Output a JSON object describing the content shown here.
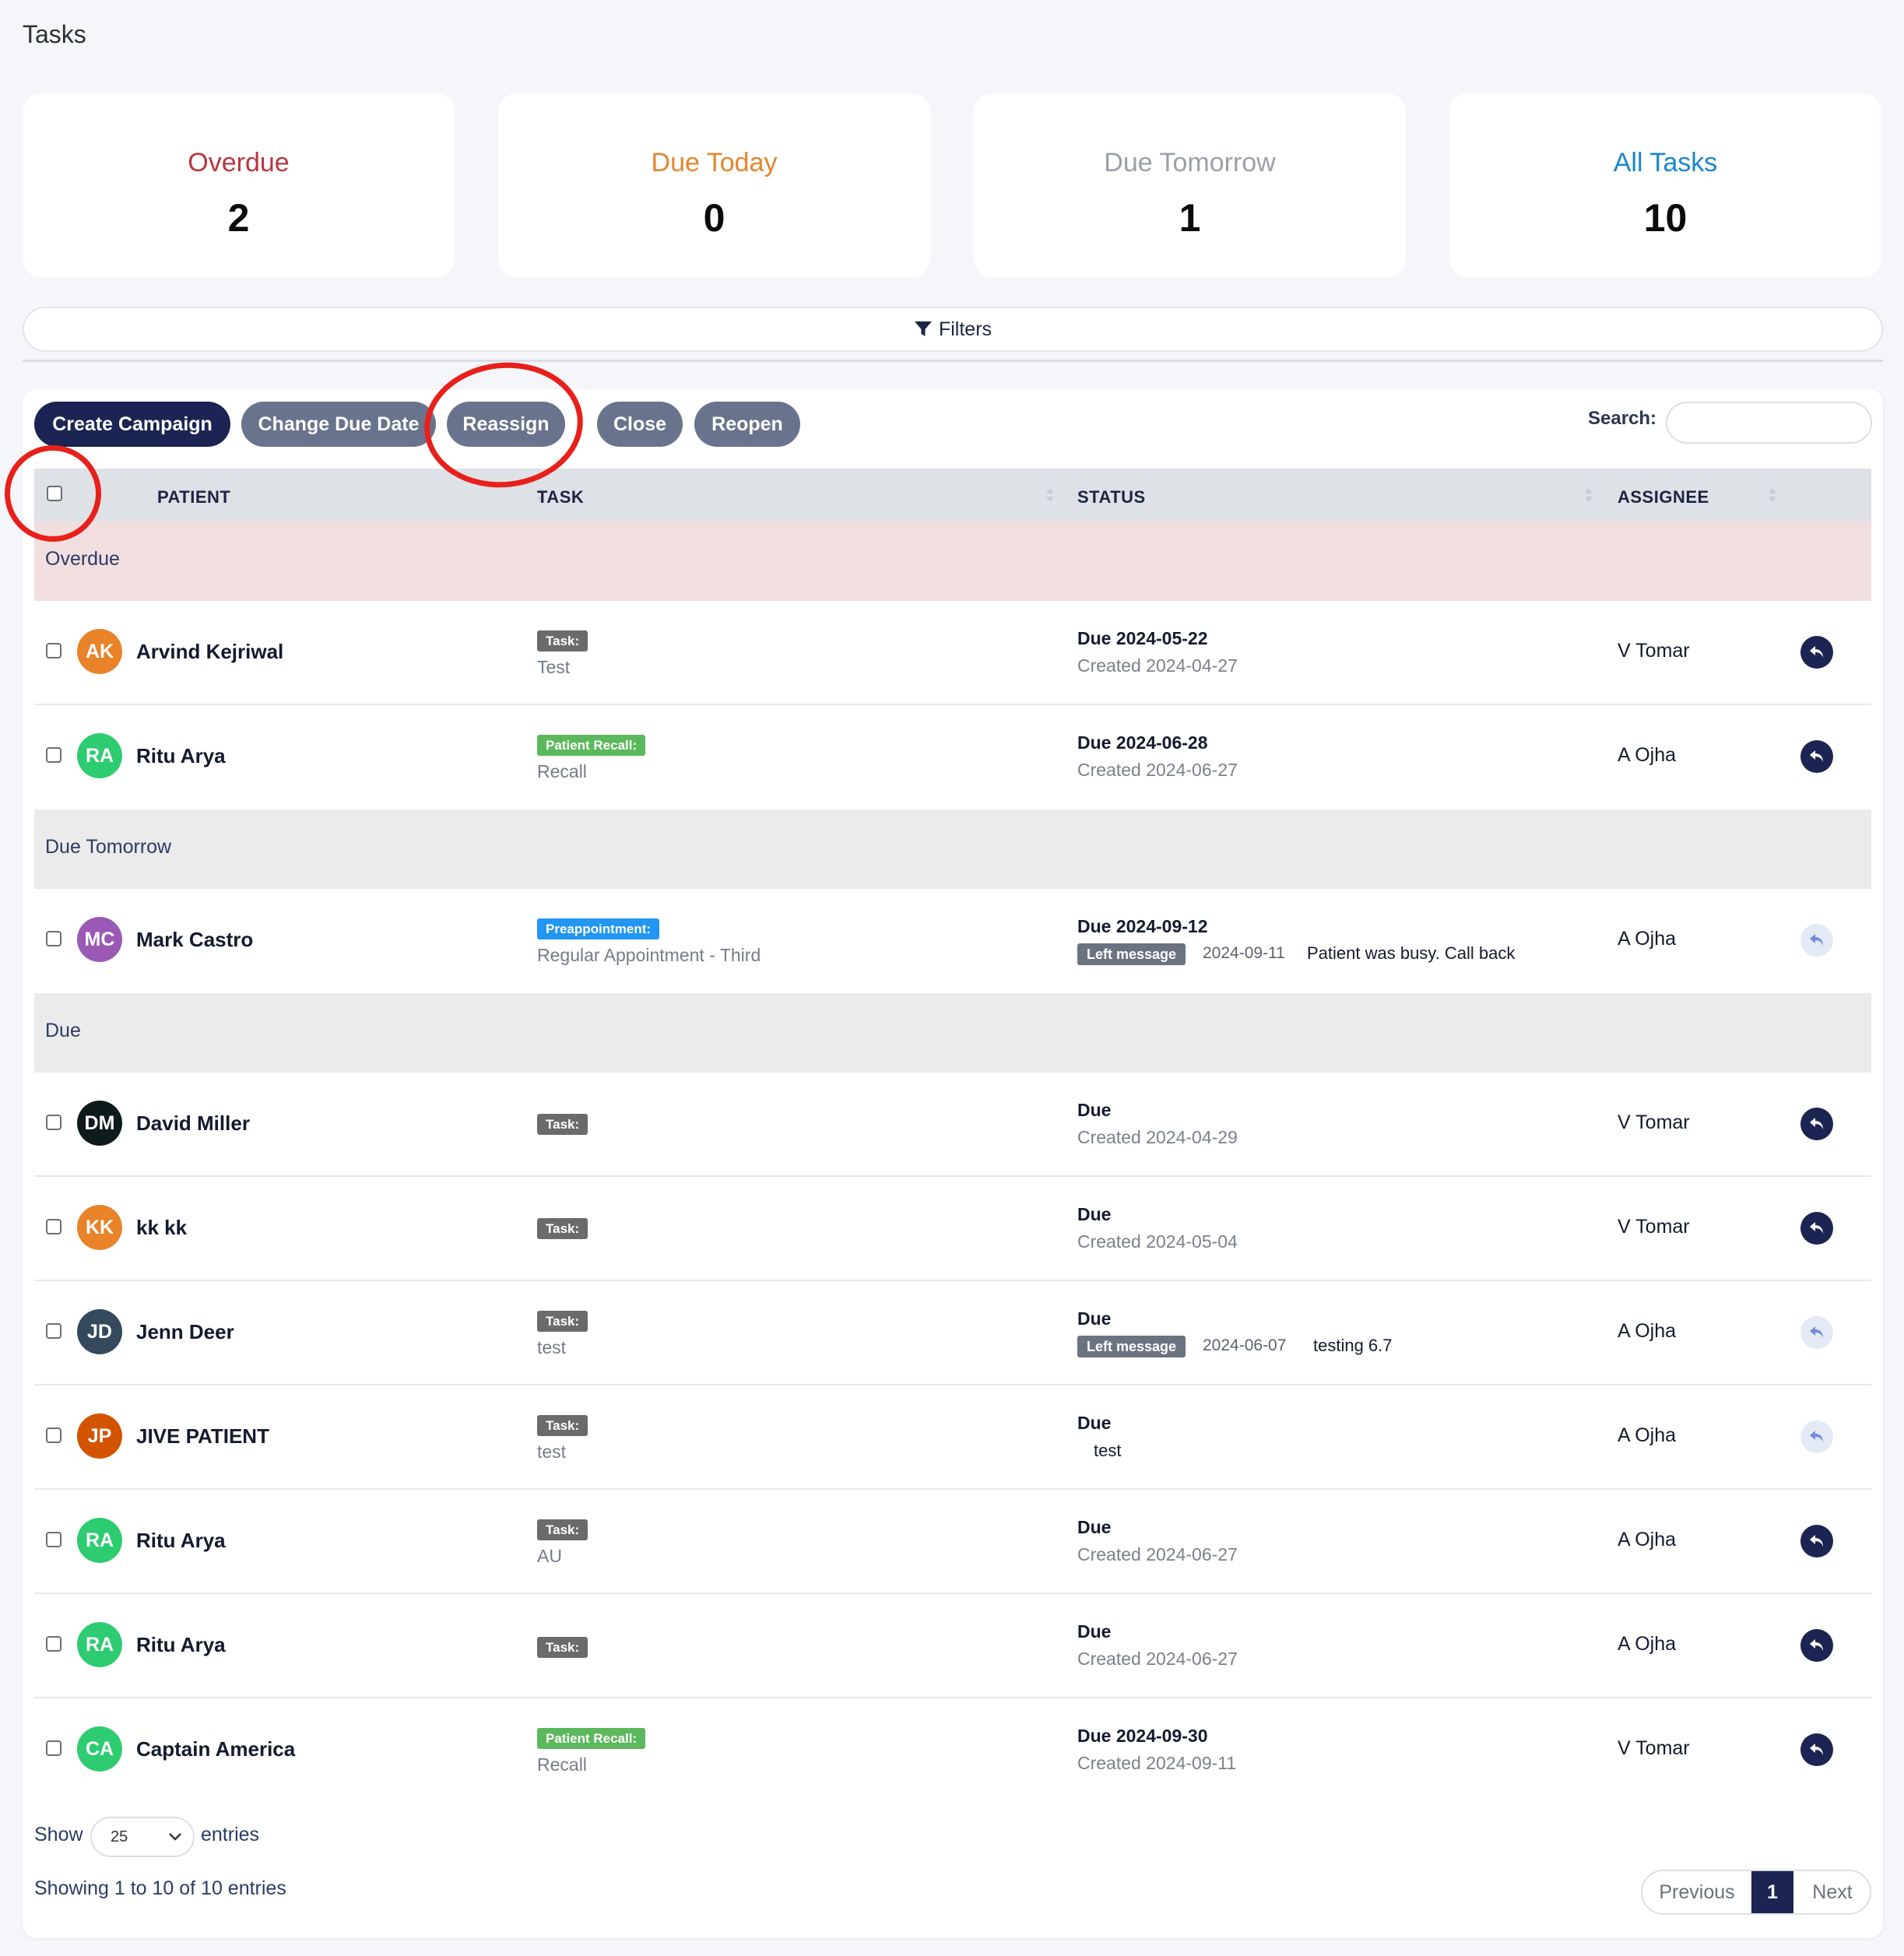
{
  "page_title": "Tasks",
  "stats": [
    {
      "label": "Overdue",
      "value": "2",
      "color": "#b8363f"
    },
    {
      "label": "Due Today",
      "value": "0",
      "color": "#e5862b"
    },
    {
      "label": "Due Tomorrow",
      "value": "1",
      "color": "#9aa0a8"
    },
    {
      "label": "All Tasks",
      "value": "10",
      "color": "#1a87c9"
    }
  ],
  "filters_label": "Filters",
  "toolbar": {
    "create_campaign": "Create Campaign",
    "change_due_date": "Change Due Date",
    "reassign": "Reassign",
    "close": "Close",
    "reopen": "Reopen",
    "search_label": "Search:",
    "search_value": ""
  },
  "columns": {
    "patient": "PATIENT",
    "task": "TASK",
    "status": "STATUS",
    "assignee": "ASSIGNEE"
  },
  "groups": {
    "overdue": "Overdue",
    "due_tomorrow": "Due Tomorrow",
    "due": "Due"
  },
  "rows": [
    {
      "initials": "AK",
      "avatar_color": "#e8832a",
      "name": "Arvind Kejriwal",
      "badge": "Task:",
      "badge_color": "#6b6b6b",
      "task": "Test",
      "due": "Due 2024-05-22",
      "created": "Created 2024-04-27",
      "assignee": "V Tomar",
      "action": "dark"
    },
    {
      "initials": "RA",
      "avatar_color": "#2ecc71",
      "name": "Ritu Arya",
      "badge": "Patient Recall:",
      "badge_color": "#5cb85c",
      "task": "Recall",
      "due": "Due 2024-06-28",
      "created": "Created 2024-06-27",
      "assignee": "A Ojha",
      "action": "dark"
    },
    {
      "initials": "MC",
      "avatar_color": "#9b59b6",
      "name": "Mark Castro",
      "badge": "Preappointment:",
      "badge_color": "#2196f3",
      "task": "Regular Appointment - Third",
      "due": "Due 2024-09-12",
      "log_badge": "Left message",
      "log_date": "2024-09-11",
      "log_note": "Patient was busy. Call back",
      "assignee": "A Ojha",
      "action": "light"
    },
    {
      "initials": "DM",
      "avatar_color": "#0f1a1a",
      "name": "David Miller",
      "badge": "Task:",
      "badge_color": "#6b6b6b",
      "task": "",
      "due": "Due",
      "created": "Created 2024-04-29",
      "assignee": "V Tomar",
      "action": "dark"
    },
    {
      "initials": "KK",
      "avatar_color": "#e8832a",
      "name": "kk kk",
      "badge": "Task:",
      "badge_color": "#6b6b6b",
      "task": "",
      "due": "Due",
      "created": "Created 2024-05-04",
      "assignee": "V Tomar",
      "action": "dark"
    },
    {
      "initials": "JD",
      "avatar_color": "#34495e",
      "name": "Jenn Deer",
      "badge": "Task:",
      "badge_color": "#6b6b6b",
      "task": "test",
      "due": "Due",
      "log_badge": "Left message",
      "log_date": "2024-06-07",
      "log_note": "testing 6.7",
      "assignee": "A Ojha",
      "action": "light"
    },
    {
      "initials": "JP",
      "avatar_color": "#d35400",
      "name": "JIVE PATIENT",
      "badge": "Task:",
      "badge_color": "#6b6b6b",
      "task": "test",
      "due": "Due",
      "extra_note": "test",
      "assignee": "A Ojha",
      "action": "light"
    },
    {
      "initials": "RA",
      "avatar_color": "#2ecc71",
      "name": "Ritu Arya",
      "badge": "Task:",
      "badge_color": "#6b6b6b",
      "task": "AU",
      "due": "Due",
      "created": "Created 2024-06-27",
      "assignee": "A Ojha",
      "action": "dark"
    },
    {
      "initials": "RA",
      "avatar_color": "#2ecc71",
      "name": "Ritu Arya",
      "badge": "Task:",
      "badge_color": "#6b6b6b",
      "task": "",
      "due": "Due",
      "created": "Created 2024-06-27",
      "assignee": "A Ojha",
      "action": "dark"
    },
    {
      "initials": "CA",
      "avatar_color": "#2ecc71",
      "name": "Captain America",
      "badge": "Patient Recall:",
      "badge_color": "#5cb85c",
      "task": "Recall",
      "due": "Due 2024-09-30",
      "created": "Created 2024-09-11",
      "assignee": "V Tomar",
      "action": "dark"
    }
  ],
  "footer": {
    "show": "Show",
    "page_size": "25",
    "entries": "entries",
    "info": "Showing 1 to 10 of 10 entries",
    "previous": "Previous",
    "current_page": "1",
    "next": "Next"
  },
  "colors": {
    "primary": "#1b2452",
    "secondary": "#69738d",
    "overdue_group_bg": "#f1dfdf",
    "group_bg": "#ebebeb",
    "annotation": "#e8201b"
  }
}
